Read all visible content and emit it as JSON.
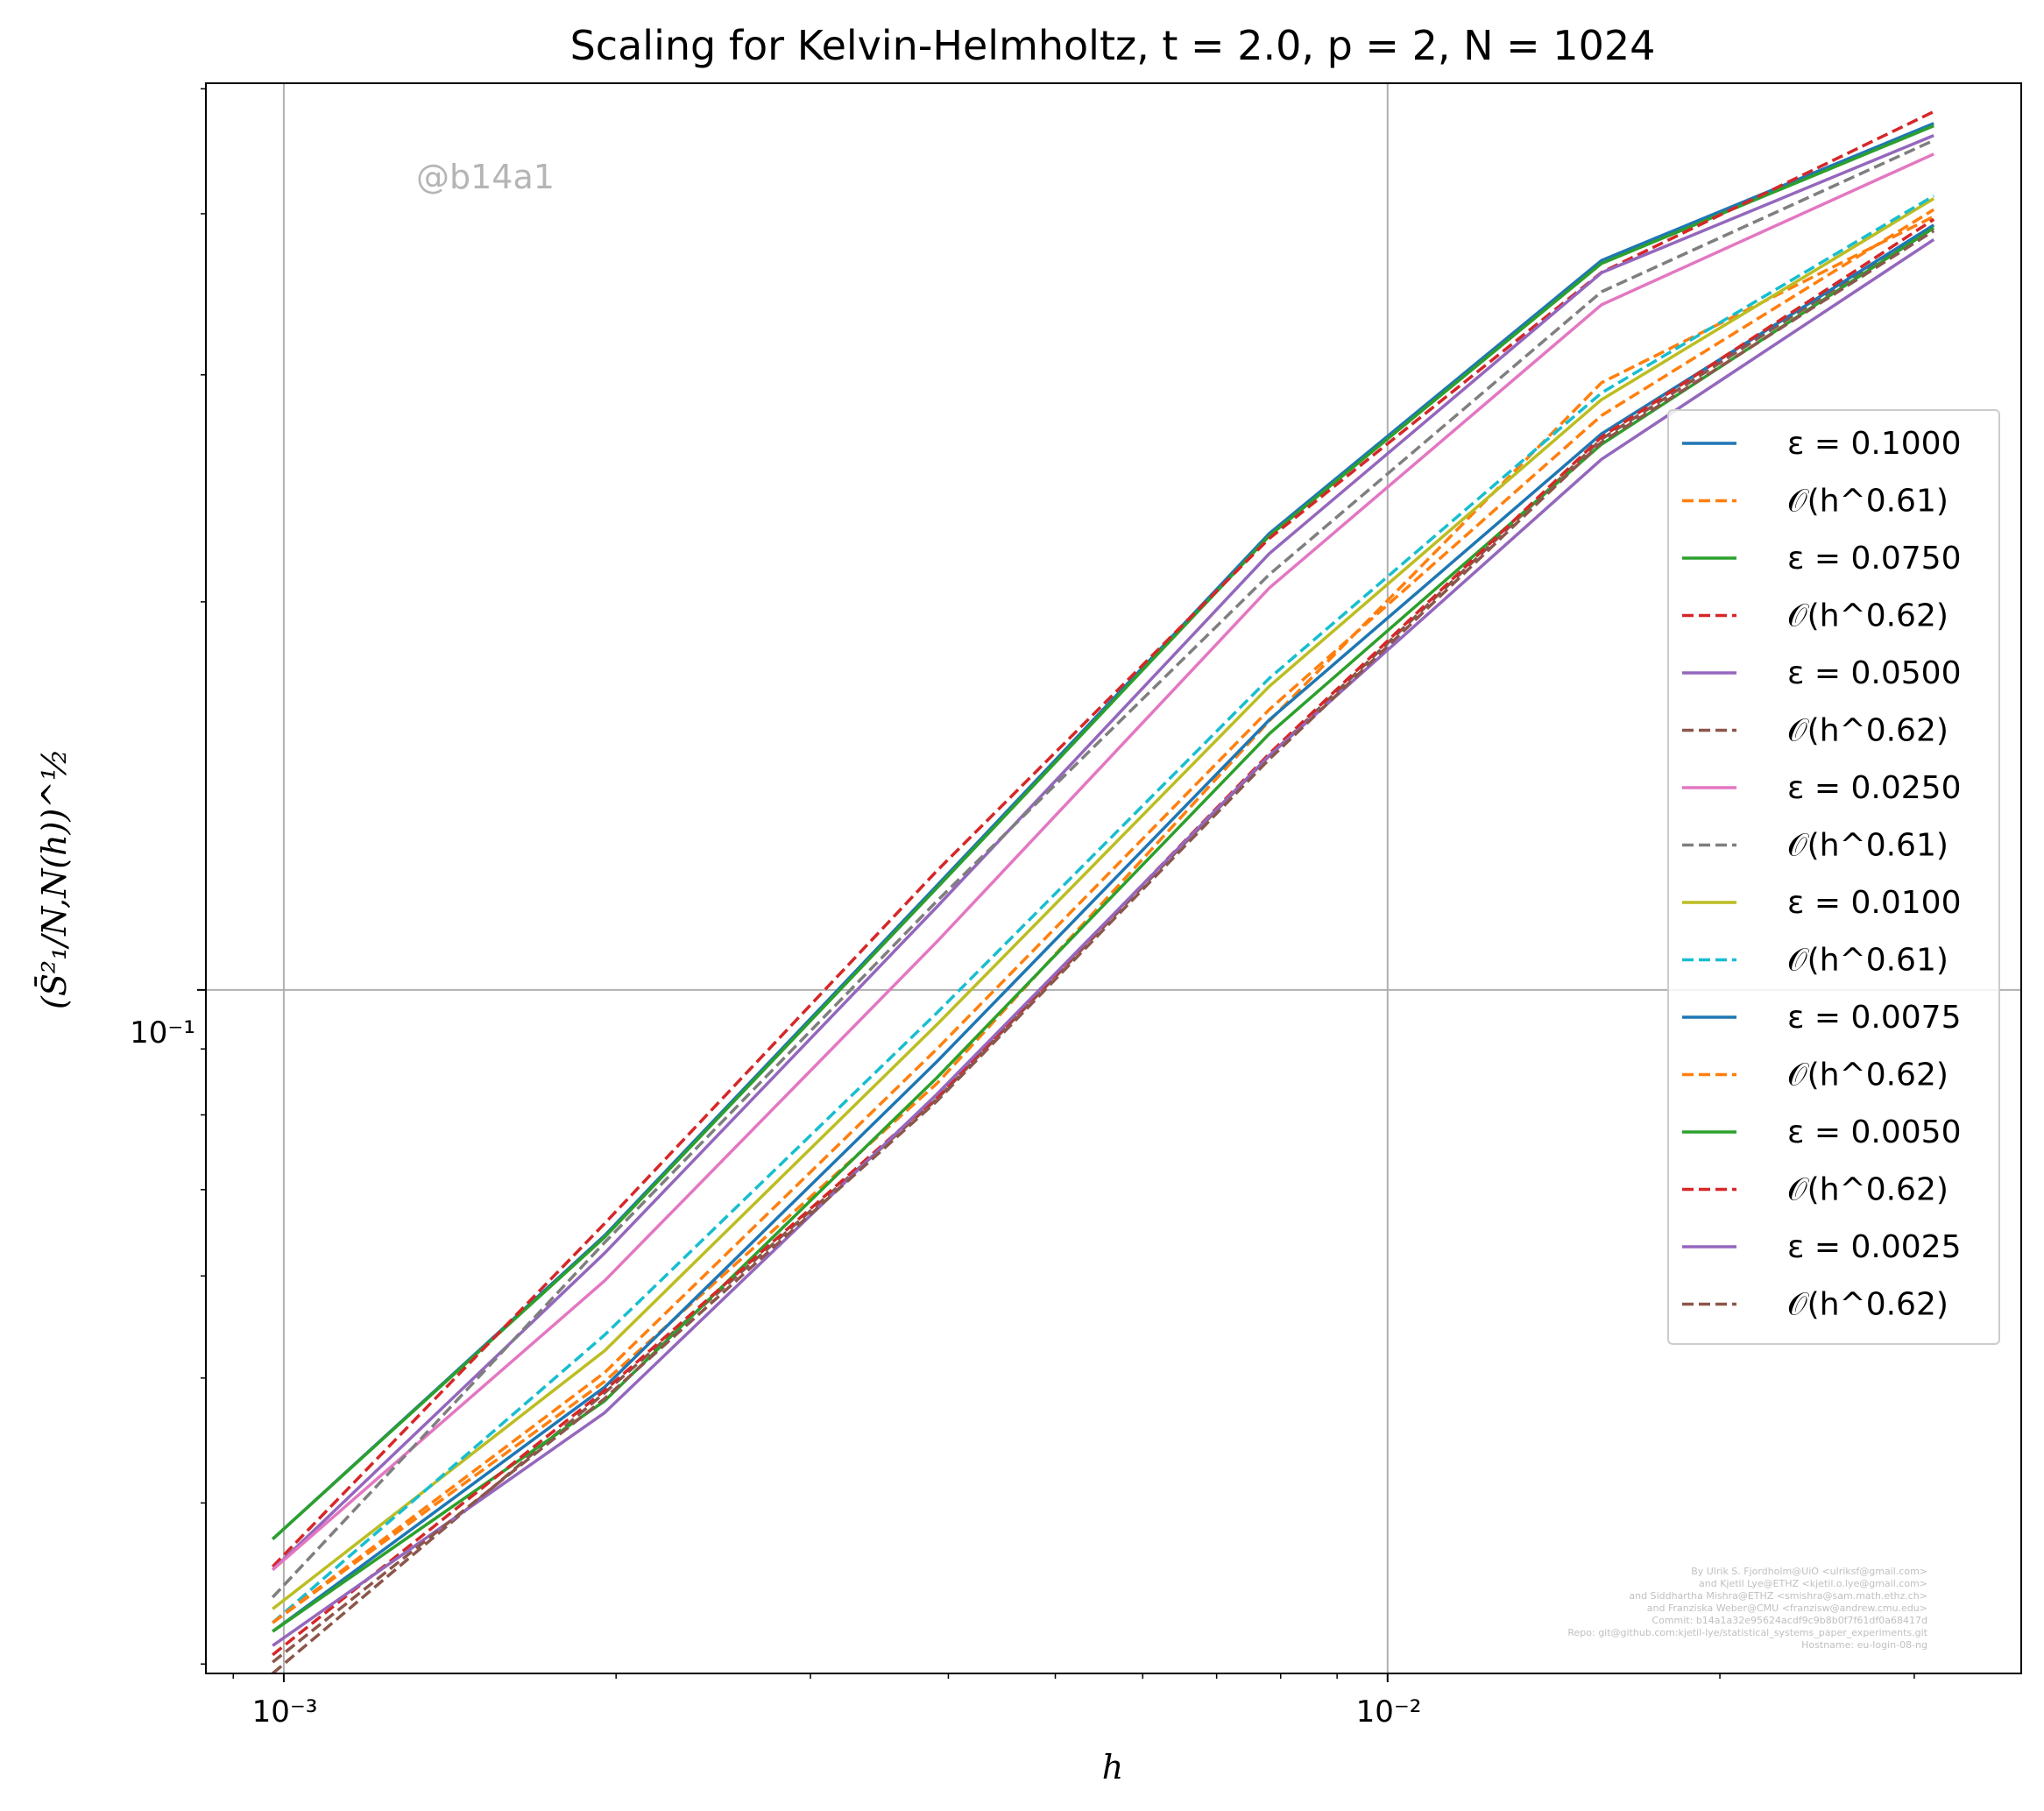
{
  "chart_data": {
    "type": "line",
    "title": "Scaling for Kelvin-Helmholtz, t = 2.0, p = 2, N = 1024",
    "xlabel": "h",
    "ylabel": "(S̄²₁/N,N(h))^½",
    "xscale": "log",
    "yscale": "log",
    "xlim": [
      0.00085,
      0.0375
    ],
    "ylim": [
      0.0295,
      0.505
    ],
    "grid": true,
    "legend_position": "center-right",
    "x_ticks": [
      {
        "value": 0.001,
        "label": "10⁻³"
      },
      {
        "value": 0.01,
        "label": "10⁻²"
      }
    ],
    "y_ticks": [
      {
        "value": 0.1,
        "label": "10⁻¹"
      }
    ],
    "x": [
      0.000977,
      0.001953,
      0.003906,
      0.007813,
      0.015625,
      0.03125
    ],
    "series": [
      {
        "name": "ε = 0.1000",
        "color": "#1f77b4",
        "dash": false,
        "values": [
          0.0375,
          0.0645,
          0.1205,
          0.226,
          0.368,
          0.47
        ]
      },
      {
        "name": "𝒪(h^0.61)",
        "color": "#ff7f0e",
        "dash": true,
        "values": [
          0.0323,
          0.0497,
          0.0846,
          0.1617,
          0.2958,
          0.398
        ]
      },
      {
        "name": "ε = 0.0750",
        "color": "#2ca02c",
        "dash": false,
        "values": [
          0.0375,
          0.0643,
          0.12,
          0.225,
          0.366,
          0.468
        ]
      },
      {
        "name": "𝒪(h^0.62)",
        "color": "#d62728",
        "dash": true,
        "values": [
          0.0357,
          0.0659,
          0.1237,
          0.224,
          0.3602,
          0.48
        ]
      },
      {
        "name": "ε = 0.0500",
        "color": "#9467bd",
        "dash": false,
        "values": [
          0.0355,
          0.0625,
          0.116,
          0.218,
          0.36,
          0.46
        ]
      },
      {
        "name": "𝒪(h^0.62)",
        "color": "#8c564b",
        "dash": true,
        "values": [
          0.0295,
          0.0487,
          0.0823,
          0.1519,
          0.2675,
          0.392
        ]
      },
      {
        "name": "ε = 0.0250",
        "color": "#e377c2",
        "dash": false,
        "values": [
          0.0355,
          0.0595,
          0.109,
          0.205,
          0.34,
          0.445
        ]
      },
      {
        "name": "𝒪(h^0.61)",
        "color": "#7f7f7f",
        "dash": true,
        "values": [
          0.0338,
          0.0637,
          0.1172,
          0.21,
          0.348,
          0.456
        ]
      },
      {
        "name": "ε = 0.0100",
        "color": "#bcbd22",
        "dash": false,
        "values": [
          0.0331,
          0.0525,
          0.094,
          0.172,
          0.287,
          0.411
        ]
      },
      {
        "name": "𝒪(h^0.61)",
        "color": "#17becf",
        "dash": true,
        "values": [
          0.0323,
          0.054,
          0.096,
          0.1745,
          0.2905,
          0.413
        ]
      },
      {
        "name": "ε = 0.0075",
        "color": "#1f77b4",
        "dash": false,
        "values": [
          0.0318,
          0.0492,
          0.088,
          0.162,
          0.27,
          0.392
        ]
      },
      {
        "name": "𝒪(h^0.62)",
        "color": "#ff7f0e",
        "dash": true,
        "values": [
          0.0323,
          0.0505,
          0.09,
          0.165,
          0.279,
          0.403
        ]
      },
      {
        "name": "ε = 0.0050",
        "color": "#2ca02c",
        "dash": false,
        "values": [
          0.0318,
          0.048,
          0.0855,
          0.158,
          0.265,
          0.39
        ]
      },
      {
        "name": "𝒪(h^0.62)",
        "color": "#d62728",
        "dash": true,
        "values": [
          0.0305,
          0.0489,
          0.0826,
          0.1525,
          0.2685,
          0.396
        ]
      },
      {
        "name": "ε = 0.0025",
        "color": "#9467bd",
        "dash": false,
        "values": [
          0.031,
          0.047,
          0.083,
          0.152,
          0.258,
          0.382
        ]
      },
      {
        "name": "𝒪(h^0.62)",
        "color": "#8c564b",
        "dash": true,
        "values": [
          0.0301,
          0.0482,
          0.082,
          0.151,
          0.266,
          0.388
        ]
      }
    ],
    "watermark": "@b14a1",
    "credits": [
      "By Ulrik S. Fjordholm@UiO <ulriksf@gmail.com>",
      "and Kjetil Lye@ETHZ <kjetil.o.lye@gmail.com>",
      "and Siddhartha Mishra@ETHZ <smishra@sam.math.ethz.ch>",
      "and Franziska Weber@CMU <franzisw@andrew.cmu.edu>",
      "Commit: b14a1a32e95624acdf9c9b8b0f7f61df0a68417d",
      "Repo: git@github.com:kjetil-lye/statistical_systems_paper_experiments.git",
      "Hostname: eu-login-08-ng"
    ]
  }
}
